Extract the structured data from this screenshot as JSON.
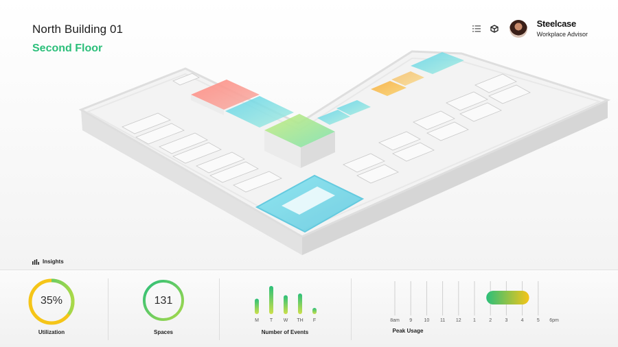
{
  "header": {
    "building": "North Building 01",
    "floor": "Second Floor",
    "brand": "Steelcase",
    "brand_sub": "Workplace Advisor",
    "icons": [
      "list-icon",
      "cube-icon"
    ]
  },
  "colors": {
    "accent_green": "#2bbf7a",
    "room_red": "#f08080",
    "room_cyan": "#6fd8e6",
    "room_green": "#a6e07a",
    "room_orange": "#f5b84a",
    "gauge_yellow": "#f5c518"
  },
  "insights": {
    "label": "Insights"
  },
  "kpis": {
    "utilization": {
      "value": "35%",
      "label": "Utilization",
      "fraction": 0.35
    },
    "spaces": {
      "value": "131",
      "label": "Spaces"
    },
    "events": {
      "label": "Number of Events",
      "days": [
        "M",
        "T",
        "W",
        "TH",
        "F"
      ],
      "levels": [
        0.45,
        0.82,
        0.55,
        0.6,
        0.18
      ]
    },
    "peak": {
      "label": "Peak Usage",
      "hours": [
        "8am",
        "9",
        "10",
        "11",
        "12",
        "1",
        "2",
        "3",
        "4",
        "5",
        "6pm"
      ],
      "range": [
        "2",
        "4"
      ]
    }
  }
}
